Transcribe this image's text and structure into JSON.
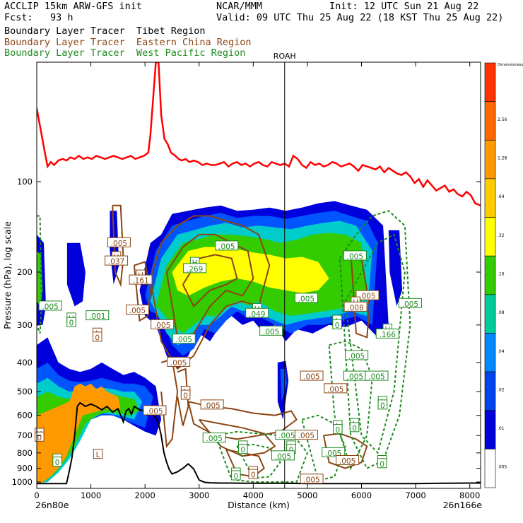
{
  "header": {
    "model": "ACCLIP 15km ARW-GFS init",
    "forecast": "Fcst:   93 h",
    "org": "NCAR/MMM",
    "init": "Init: 12 UTC Sun 21 Aug 22",
    "valid": "Valid: 09 UTC Thu 25 Aug 22 (18 KST Thu 25 Aug 22)"
  },
  "legend": [
    {
      "label": "Boundary Layer Tracer  Tibet Region",
      "color": "#000000"
    },
    {
      "label": "Boundary Layer Tracer  Eastern China Region",
      "color": "#8b4513"
    },
    {
      "label": "Boundary Layer Tracer  West Pacific Region",
      "color": "#1e8a1e"
    }
  ],
  "chart_data": {
    "type": "heatmap",
    "xlabel": "Distance (km)",
    "ylabel": "Pressure (hPa), log scale",
    "xlim": [
      0,
      8200
    ],
    "ylim": [
      1050,
      40
    ],
    "xticks": [
      0,
      1000,
      2000,
      3000,
      4000,
      5000,
      6000,
      7000,
      8000
    ],
    "yticks": [
      100,
      200,
      300,
      400,
      500,
      600,
      700,
      800,
      900,
      1000
    ],
    "start_label": "26n80e",
    "end_label": "26n166e",
    "marker": {
      "label": "ROAH",
      "x": 4580
    },
    "colorbar": {
      "levels": [
        "Dimensionless",
        "2.56",
        "1.28",
        ".64",
        ".32",
        ".16",
        ".08",
        ".04",
        ".02",
        ".01",
        ".005"
      ],
      "colors": [
        "#ff3300",
        "#ff6600",
        "#ff9900",
        "#ffcc00",
        "#ffff00",
        "#33cc00",
        "#00cc99",
        "#0088ff",
        "#0044ee",
        "#0000dd",
        "#ffffff"
      ]
    },
    "field_colors": [
      "#0000dd",
      "#0055ff",
      "#00cccc",
      "#33cc00",
      "#ffff00",
      "#ff9900"
    ],
    "tropopause": {
      "color": "#ff0000",
      "x": [
        0,
        150,
        200,
        260,
        320,
        400,
        480,
        550,
        620,
        700,
        780,
        860,
        940,
        1020,
        1100,
        1180,
        1260,
        1340,
        1420,
        1500,
        1580,
        1660,
        1740,
        1820,
        1900,
        1980,
        2060,
        2100,
        2200,
        2250,
        2300,
        2360,
        2420,
        2480,
        2560,
        2620,
        2680,
        2750,
        2820,
        2900,
        2980,
        3060,
        3140,
        3220,
        3300,
        3380,
        3460,
        3540,
        3620,
        3700,
        3780,
        3860,
        3940,
        4020,
        4100,
        4180,
        4260,
        4340,
        4420,
        4500,
        4580,
        4660,
        4740,
        4820,
        4900,
        4980,
        5060,
        5140,
        5220,
        5300,
        5380,
        5460,
        5540,
        5620,
        5700,
        5780,
        5860,
        5940,
        6020,
        6100,
        6180,
        6260,
        6340,
        6420,
        6500,
        6580,
        6660,
        6740,
        6820,
        6900,
        6980,
        7060,
        7140,
        7220,
        7300,
        7380,
        7460,
        7540,
        7620,
        7700,
        7780,
        7860,
        7940,
        8020,
        8100,
        8200
      ],
      "p": [
        57,
        80,
        89,
        86,
        88,
        85,
        84,
        85,
        83,
        84,
        82,
        84,
        83,
        84,
        82,
        83,
        84,
        83,
        82,
        83,
        84,
        83,
        82,
        84,
        83,
        82,
        80,
        70,
        40,
        40,
        60,
        72,
        75,
        80,
        82,
        84,
        85,
        84,
        86,
        85,
        86,
        88,
        87,
        88,
        88,
        87,
        86,
        89,
        87,
        86,
        88,
        87,
        89,
        87,
        86,
        88,
        89,
        86,
        87,
        88,
        87,
        89,
        82,
        84,
        88,
        90,
        86,
        88,
        87,
        89,
        88,
        86,
        87,
        89,
        88,
        87,
        89,
        92,
        88,
        89,
        90,
        91,
        89,
        93,
        90,
        92,
        94,
        95,
        93,
        96,
        101,
        98,
        104,
        99,
        103,
        107,
        105,
        103,
        108,
        106,
        110,
        112,
        108,
        111,
        118,
        120
      ]
    },
    "topography": {
      "color": "#000000",
      "x": [
        0,
        200,
        400,
        550,
        600,
        650,
        700,
        750,
        800,
        900,
        1000,
        1100,
        1200,
        1300,
        1400,
        1500,
        1550,
        1600,
        1650,
        1700,
        1750,
        1800,
        1900,
        2000,
        2050,
        2100,
        2150,
        2200,
        2250,
        2300,
        2350,
        2400,
        2450,
        2500,
        2600,
        2700,
        2800,
        2900,
        3000,
        3100,
        3200,
        3400,
        3600,
        3800,
        4000,
        4500,
        5000,
        5500,
        6000,
        6500,
        7000,
        7500,
        8000,
        8200
      ],
      "p": [
        1012,
        1012,
        1012,
        1012,
        920,
        830,
        700,
        560,
        545,
        560,
        550,
        560,
        575,
        560,
        585,
        570,
        600,
        630,
        580,
        570,
        595,
        560,
        575,
        580,
        600,
        580,
        600,
        610,
        640,
        700,
        800,
        860,
        910,
        940,
        925,
        900,
        870,
        905,
        985,
        1002,
        1006,
        1008,
        1008,
        1010,
        1010,
        1010,
        1012,
        1012,
        1012,
        1012,
        1012,
        1010,
        1008,
        1008
      ]
    },
    "regions": [
      {
        "p": [
          [
            1,
            1
          ]
        ]
      }
    ],
    "contour_labels": [
      {
        "text": ".005",
        "x": 1520,
        "p": 160,
        "color": "#8b4513",
        "kind": "value"
      },
      {
        "text": "H",
        "x": 1470,
        "p": 178,
        "color": "#8b4513",
        "kind": "value"
      },
      {
        "text": ".037",
        "x": 1470,
        "p": 184,
        "color": "#8b4513",
        "kind": "value"
      },
      {
        "text": "H",
        "x": 1920,
        "p": 205,
        "color": "#8b4513",
        "kind": "value"
      },
      {
        "text": ".161",
        "x": 1920,
        "p": 213,
        "color": "#8b4513",
        "kind": "value"
      },
      {
        "text": ".005",
        "x": 1860,
        "p": 268,
        "color": "#8b4513",
        "kind": "value"
      },
      {
        "text": "H",
        "x": 2920,
        "p": 186,
        "color": "#1e8a1e",
        "kind": "value"
      },
      {
        "text": ".269",
        "x": 2920,
        "p": 195,
        "color": "#1e8a1e",
        "kind": "value"
      },
      {
        "text": ".005",
        "x": 3510,
        "p": 164,
        "color": "#1e8a1e",
        "kind": "value"
      },
      {
        "text": ".005",
        "x": 250,
        "p": 260,
        "color": "#1e8a1e",
        "kind": "value"
      },
      {
        "text": "H",
        "x": 640,
        "p": 285,
        "color": "#1e8a1e",
        "kind": "value"
      },
      {
        "text": "0",
        "x": 640,
        "p": 295,
        "color": "#1e8a1e",
        "kind": "value"
      },
      {
        "text": ".001",
        "x": 1120,
        "p": 280,
        "color": "#1e8a1e",
        "kind": "value"
      },
      {
        "text": "L",
        "x": 1120,
        "p": 320,
        "color": "#8b4513",
        "kind": "value"
      },
      {
        "text": "0",
        "x": 1120,
        "p": 330,
        "color": "#8b4513",
        "kind": "value"
      },
      {
        "text": ".005",
        "x": 2320,
        "p": 300,
        "color": "#8b4513",
        "kind": "value"
      },
      {
        "text": ".005",
        "x": 2720,
        "p": 335,
        "color": "#1e8a1e",
        "kind": "value"
      },
      {
        "text": ".005",
        "x": 2620,
        "p": 400,
        "color": "#8b4513",
        "kind": "value"
      },
      {
        "text": "H",
        "x": 4070,
        "p": 265,
        "color": "#1e8a1e",
        "kind": "value"
      },
      {
        "text": ".049",
        "x": 4070,
        "p": 275,
        "color": "#1e8a1e",
        "kind": "value"
      },
      {
        "text": ".005",
        "x": 4330,
        "p": 315,
        "color": "#1e8a1e",
        "kind": "value"
      },
      {
        "text": ".005",
        "x": 4980,
        "p": 245,
        "color": "#1e8a1e",
        "kind": "value"
      },
      {
        "text": "L",
        "x": 5550,
        "p": 290,
        "color": "#1e8a1e",
        "kind": "value"
      },
      {
        "text": "0",
        "x": 5550,
        "p": 300,
        "color": "#1e8a1e",
        "kind": "value"
      },
      {
        "text": ".005",
        "x": 5880,
        "p": 177,
        "color": "#1e8a1e",
        "kind": "value"
      },
      {
        "text": ".005",
        "x": 6110,
        "p": 240,
        "color": "#8b4513",
        "kind": "value"
      },
      {
        "text": "H",
        "x": 5890,
        "p": 252,
        "color": "#8b4513",
        "kind": "value"
      },
      {
        "text": ".008",
        "x": 5890,
        "p": 262,
        "color": "#8b4513",
        "kind": "value"
      },
      {
        "text": ".005",
        "x": 6900,
        "p": 255,
        "color": "#1e8a1e",
        "kind": "value"
      },
      {
        "text": "H",
        "x": 6480,
        "p": 310,
        "color": "#1e8a1e",
        "kind": "value"
      },
      {
        "text": ".166",
        "x": 6480,
        "p": 322,
        "color": "#1e8a1e",
        "kind": "value"
      },
      {
        "text": ".005",
        "x": 5910,
        "p": 380,
        "color": "#1e8a1e",
        "kind": "value"
      },
      {
        "text": ".005",
        "x": 5080,
        "p": 445,
        "color": "#8b4513",
        "kind": "value"
      },
      {
        "text": ".005",
        "x": 5880,
        "p": 445,
        "color": "#1e8a1e",
        "kind": "value"
      },
      {
        "text": ".005",
        "x": 6280,
        "p": 445,
        "color": "#1e8a1e",
        "kind": "value"
      },
      {
        "text": ".005",
        "x": 5520,
        "p": 490,
        "color": "#8b4513",
        "kind": "value"
      },
      {
        "text": "L",
        "x": 2750,
        "p": 500,
        "color": "#8b4513",
        "kind": "value"
      },
      {
        "text": "0",
        "x": 2750,
        "p": 515,
        "color": "#8b4513",
        "kind": "value"
      },
      {
        "text": ".005",
        "x": 3240,
        "p": 555,
        "color": "#8b4513",
        "kind": "value"
      },
      {
        "text": ".005",
        "x": 2180,
        "p": 580,
        "color": "#8b4513",
        "kind": "value"
      },
      {
        "text": "L",
        "x": 6390,
        "p": 540,
        "color": "#1e8a1e",
        "kind": "value"
      },
      {
        "text": "0",
        "x": 6390,
        "p": 555,
        "color": "#1e8a1e",
        "kind": "value"
      },
      {
        "text": "H",
        "x": 50,
        "p": 690,
        "color": "#8b4513",
        "kind": "value"
      },
      {
        "text": "0",
        "x": 50,
        "p": 710,
        "color": "#8b4513",
        "kind": "value"
      },
      {
        "text": "L",
        "x": 5560,
        "p": 650,
        "color": "#1e8a1e",
        "kind": "value"
      },
      {
        "text": "0",
        "x": 5560,
        "p": 670,
        "color": "#1e8a1e",
        "kind": "value"
      },
      {
        "text": "L",
        "x": 5870,
        "p": 640,
        "color": "#1e8a1e",
        "kind": "value"
      },
      {
        "text": "0",
        "x": 5870,
        "p": 660,
        "color": "#1e8a1e",
        "kind": "value"
      },
      {
        "text": ".005",
        "x": 3280,
        "p": 715,
        "color": "#1e8a1e",
        "kind": "value"
      },
      {
        "text": ".005",
        "x": 4620,
        "p": 700,
        "color": "#1e8a1e",
        "kind": "value"
      },
      {
        "text": ".005",
        "x": 4980,
        "p": 700,
        "color": "#8b4513",
        "kind": "value"
      },
      {
        "text": "L",
        "x": 3810,
        "p": 760,
        "color": "#1e8a1e",
        "kind": "value"
      },
      {
        "text": "0",
        "x": 3810,
        "p": 780,
        "color": "#1e8a1e",
        "kind": "value"
      },
      {
        "text": "L",
        "x": 4700,
        "p": 760,
        "color": "#1e8a1e",
        "kind": "value"
      },
      {
        "text": "0",
        "x": 4700,
        "p": 780,
        "color": "#1e8a1e",
        "kind": "value"
      },
      {
        "text": ".005",
        "x": 5480,
        "p": 800,
        "color": "#1e8a1e",
        "kind": "value"
      },
      {
        "text": ".005",
        "x": 4550,
        "p": 820,
        "color": "#1e8a1e",
        "kind": "value"
      },
      {
        "text": "L",
        "x": 1130,
        "p": 810,
        "color": "#8b4513",
        "kind": "value"
      },
      {
        "text": "L",
        "x": 380,
        "p": 840,
        "color": "#1e8a1e",
        "kind": "value"
      },
      {
        "text": "0",
        "x": 380,
        "p": 860,
        "color": "#1e8a1e",
        "kind": "value"
      },
      {
        "text": "L",
        "x": 6380,
        "p": 850,
        "color": "#1e8a1e",
        "kind": "value"
      },
      {
        "text": "0",
        "x": 6380,
        "p": 870,
        "color": "#1e8a1e",
        "kind": "value"
      },
      {
        "text": ".005",
        "x": 5740,
        "p": 850,
        "color": "#8b4513",
        "kind": "value"
      },
      {
        "text": "L",
        "x": 3680,
        "p": 935,
        "color": "#1e8a1e",
        "kind": "value"
      },
      {
        "text": "0",
        "x": 3680,
        "p": 955,
        "color": "#1e8a1e",
        "kind": "value"
      },
      {
        "text": "L",
        "x": 4000,
        "p": 925,
        "color": "#8b4513",
        "kind": "value"
      },
      {
        "text": "0",
        "x": 4000,
        "p": 945,
        "color": "#8b4513",
        "kind": "value"
      },
      {
        "text": ".005",
        "x": 5080,
        "p": 980,
        "color": "#8b4513",
        "kind": "value"
      }
    ]
  }
}
